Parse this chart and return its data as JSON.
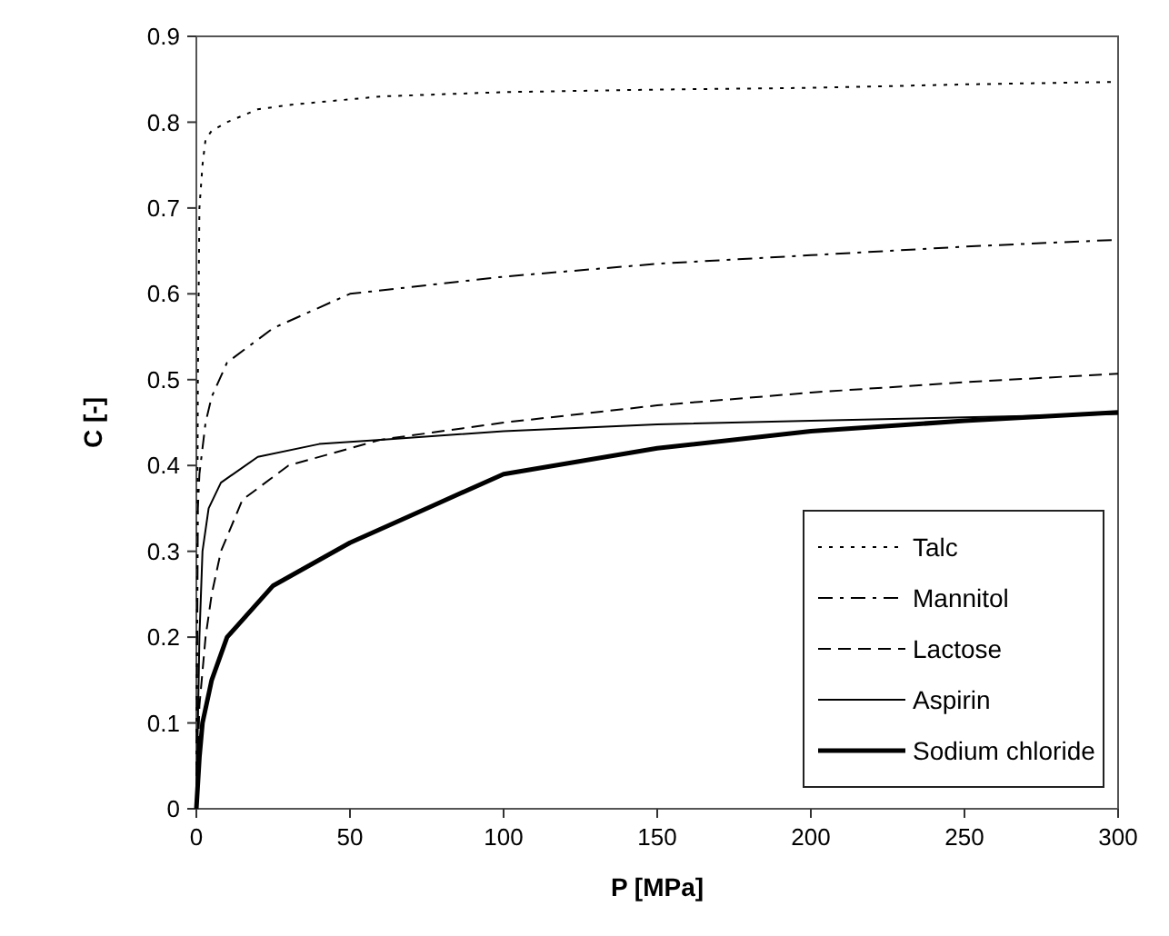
{
  "chart_data": {
    "type": "line",
    "xlabel": "P [MPa]",
    "ylabel": "C [-]",
    "xlim": [
      0,
      300
    ],
    "ylim": [
      0,
      0.9
    ],
    "xticks": [
      0,
      50,
      100,
      150,
      200,
      250,
      300
    ],
    "yticks": [
      0,
      0.1,
      0.2,
      0.3,
      0.4,
      0.5,
      0.6,
      0.7,
      0.8,
      0.9
    ],
    "grid": false,
    "legend": "bottom right",
    "marker": "none",
    "series": [
      {
        "name": "Talc",
        "color": "#000000",
        "line_style": "dotted",
        "x": [
          0,
          0.5,
          1,
          2,
          3,
          5,
          10,
          20,
          30,
          60,
          100,
          150,
          200,
          250,
          300
        ],
        "values": [
          0,
          0.5,
          0.7,
          0.75,
          0.78,
          0.79,
          0.8,
          0.815,
          0.82,
          0.83,
          0.835,
          0.838,
          0.84,
          0.844,
          0.847
        ]
      },
      {
        "name": "Mannitol",
        "color": "#000000",
        "line_style": "dashdot",
        "x": [
          0,
          0.5,
          1,
          3,
          5,
          10,
          25,
          50,
          100,
          150,
          200,
          250,
          300
        ],
        "values": [
          0,
          0.35,
          0.39,
          0.45,
          0.48,
          0.52,
          0.56,
          0.6,
          0.62,
          0.635,
          0.645,
          0.655,
          0.663
        ]
      },
      {
        "name": "Lactose",
        "color": "#000000",
        "line_style": "dashed",
        "x": [
          0,
          1,
          3,
          5,
          8,
          15,
          30,
          60,
          100,
          150,
          200,
          250,
          300
        ],
        "values": [
          0,
          0.12,
          0.2,
          0.25,
          0.3,
          0.36,
          0.4,
          0.43,
          0.45,
          0.47,
          0.485,
          0.497,
          0.507
        ]
      },
      {
        "name": "Aspirin",
        "color": "#000000",
        "line_style": "solid",
        "x": [
          0,
          1,
          2,
          4,
          8,
          20,
          40,
          60,
          100,
          150,
          200,
          250,
          300
        ],
        "values": [
          0,
          0.2,
          0.3,
          0.35,
          0.38,
          0.41,
          0.425,
          0.43,
          0.44,
          0.448,
          0.452,
          0.456,
          0.46
        ]
      },
      {
        "name": "Sodium chloride",
        "color": "#000000",
        "line_style": "solid",
        "x": [
          0,
          1,
          2,
          5,
          10,
          25,
          50,
          75,
          100,
          150,
          200,
          250,
          300
        ],
        "values": [
          0,
          0.06,
          0.1,
          0.15,
          0.2,
          0.26,
          0.31,
          0.35,
          0.39,
          0.42,
          0.44,
          0.452,
          0.462
        ]
      }
    ]
  }
}
